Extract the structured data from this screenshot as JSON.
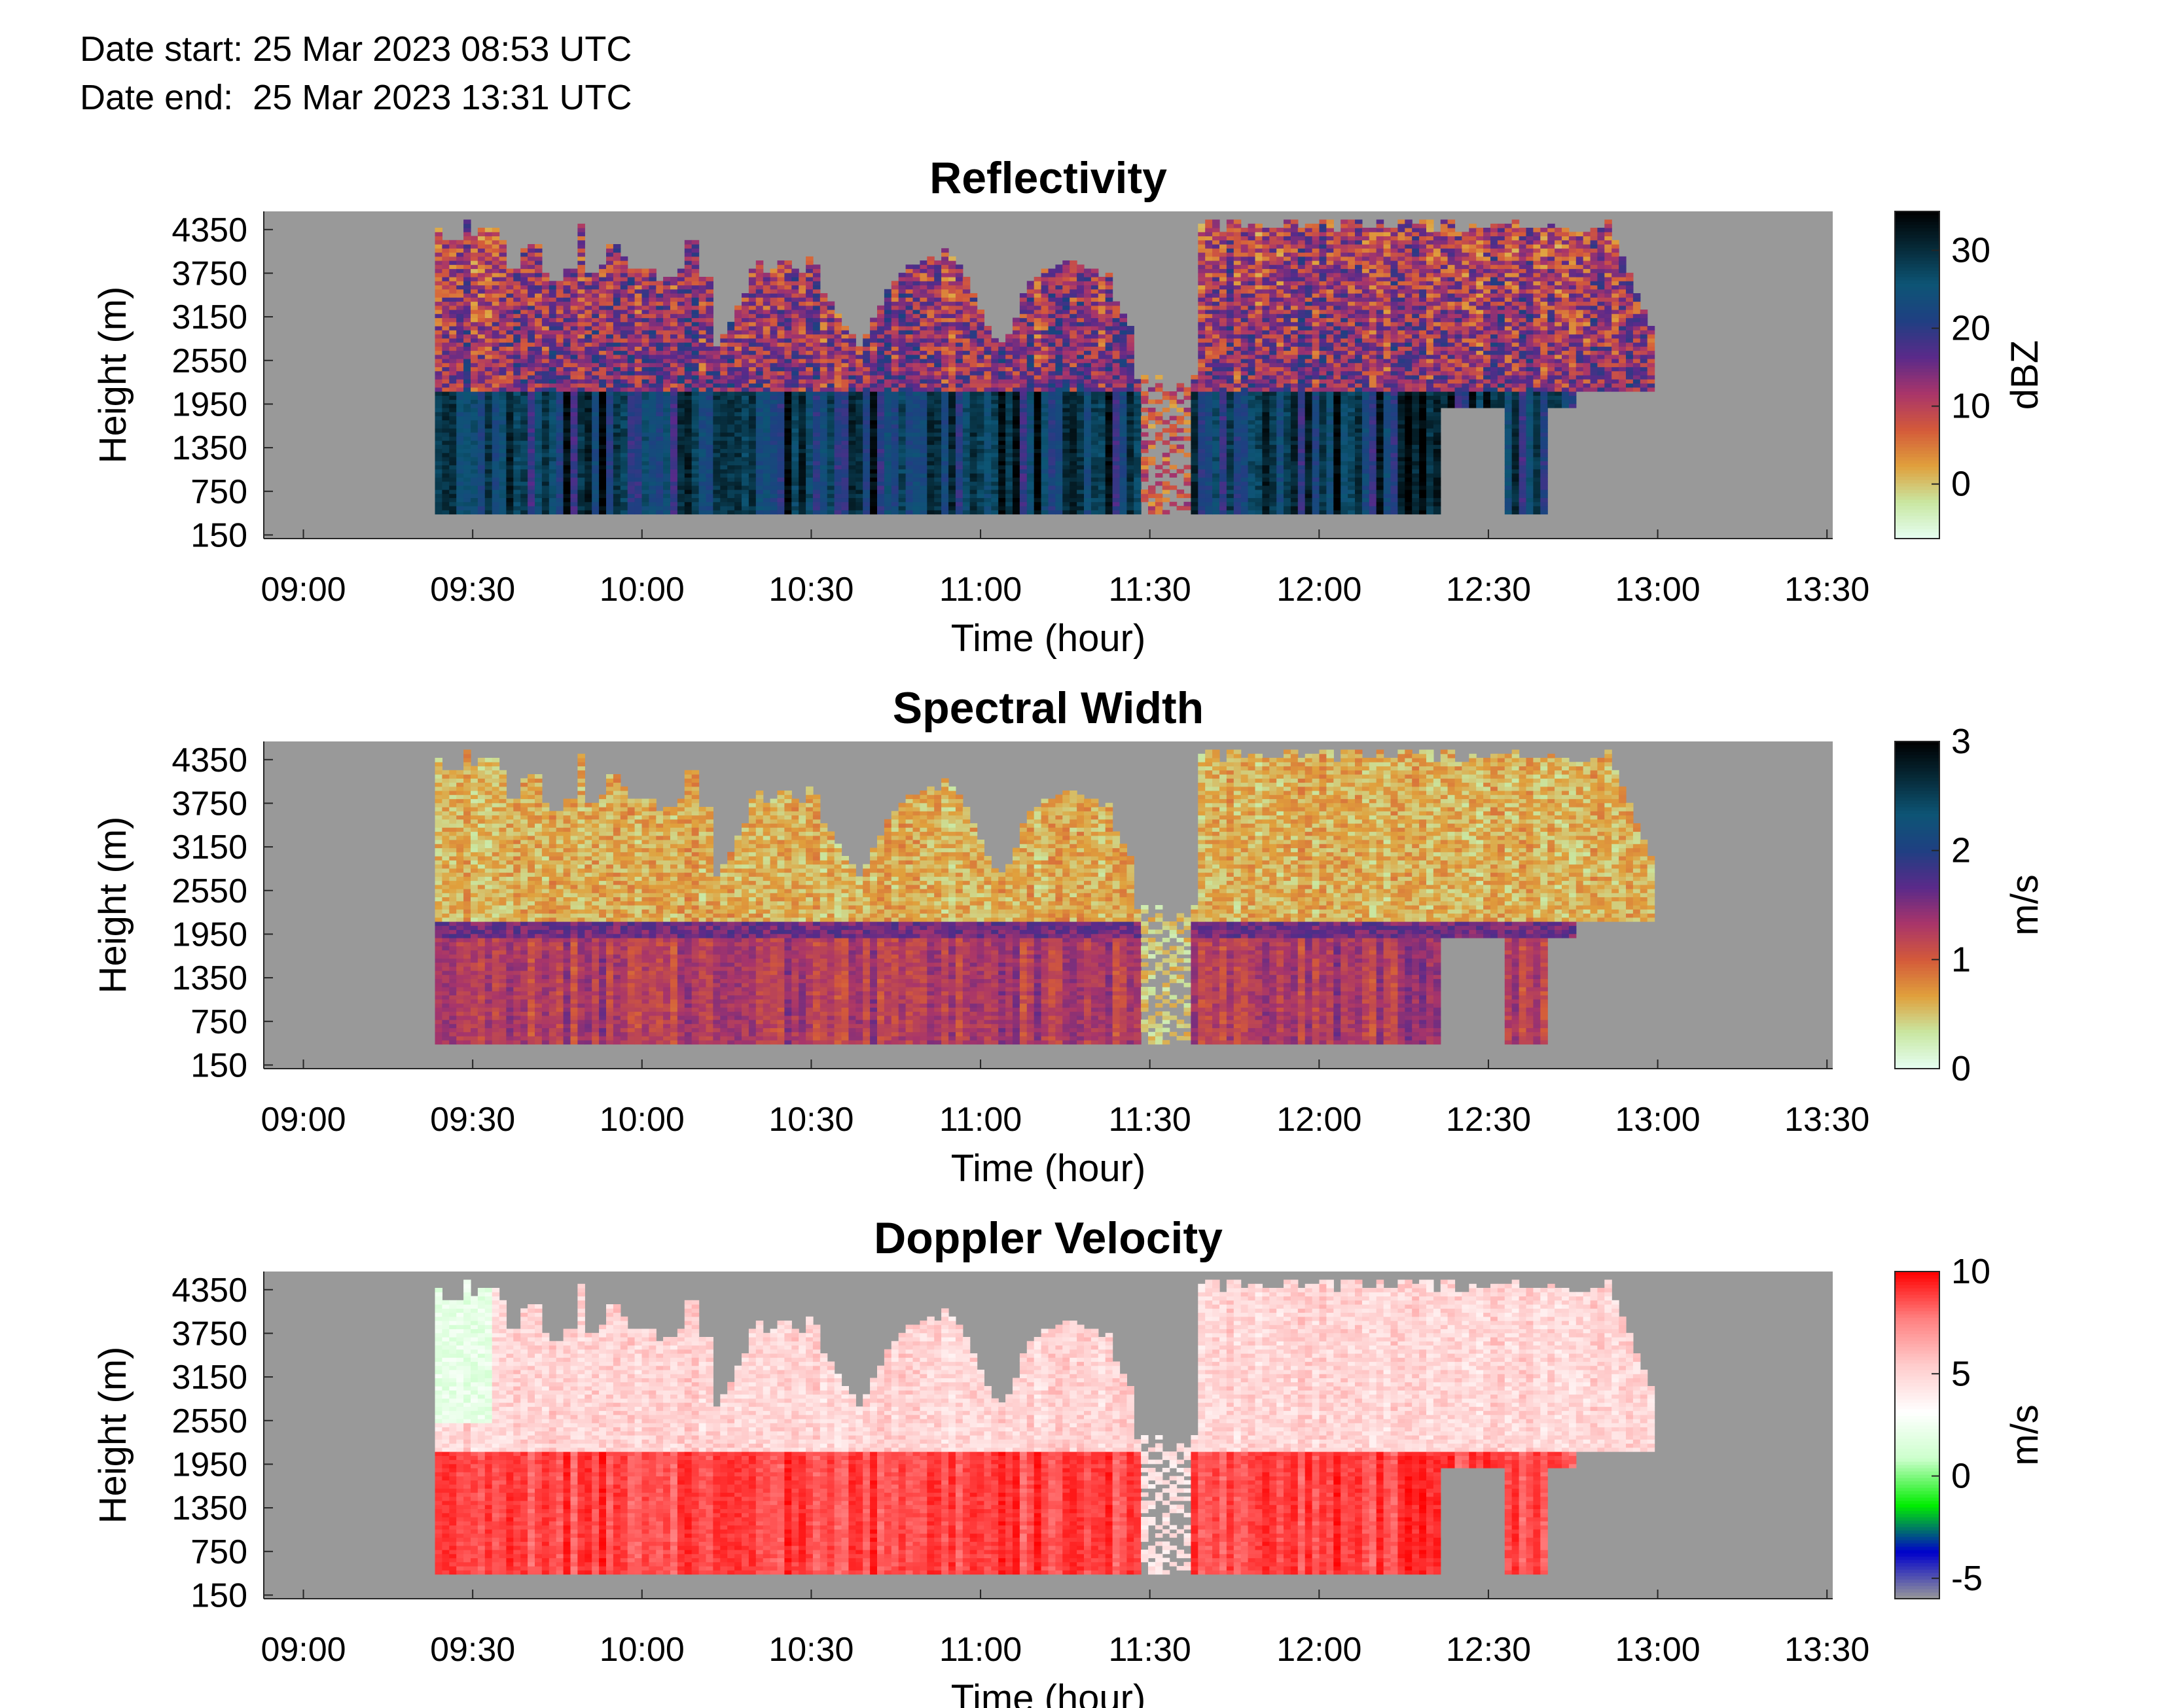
{
  "header": {
    "date_start": "Date start: 25 Mar 2023 08:53 UTC",
    "date_end": "Date end:  25 Mar 2023 13:31 UTC"
  },
  "chart_data": [
    {
      "type": "heatmap",
      "title": "Reflectivity",
      "xlabel": "Time (hour)",
      "ylabel": "Height (m)",
      "x_ticks": [
        "09:00",
        "09:30",
        "10:00",
        "10:30",
        "11:00",
        "11:30",
        "12:00",
        "12:30",
        "13:00",
        "13:30"
      ],
      "y_ticks": [
        "150",
        "750",
        "1350",
        "1950",
        "2550",
        "3150",
        "3750",
        "4350"
      ],
      "colorbar": {
        "label": "dBZ",
        "ticks": [
          "0",
          "10",
          "20",
          "30"
        ],
        "range": [
          -7,
          35
        ],
        "colors": [
          "#e6fff3",
          "#c9e7a2",
          "#e0a03c",
          "#d45a3a",
          "#a8356a",
          "#5a2a8a",
          "#1f3f82",
          "#0d5575",
          "#062a38",
          "#000000"
        ]
      },
      "value_range": [
        -5,
        35
      ],
      "features": {
        "dense_layer_below_m": 2100,
        "cloud_top_m": 4500
      }
    },
    {
      "type": "heatmap",
      "title": "Spectral Width",
      "xlabel": "Time (hour)",
      "ylabel": "Height (m)",
      "x_ticks": [
        "09:00",
        "09:30",
        "10:00",
        "10:30",
        "11:00",
        "11:30",
        "12:00",
        "12:30",
        "13:00",
        "13:30"
      ],
      "y_ticks": [
        "150",
        "750",
        "1350",
        "1950",
        "2550",
        "3150",
        "3750",
        "4350"
      ],
      "colorbar": {
        "label": "m/s",
        "ticks": [
          "0",
          "1",
          "2",
          "3"
        ],
        "range": [
          0,
          3
        ],
        "colors": [
          "#e6fff3",
          "#c9e7a2",
          "#e0a03c",
          "#d45a3a",
          "#a8356a",
          "#5a2a8a",
          "#1f3f82",
          "#0d5575",
          "#062a38",
          "#000000"
        ]
      },
      "value_range": [
        0,
        3
      ]
    },
    {
      "type": "heatmap",
      "title": "Doppler Velocity",
      "xlabel": "Time (hour)",
      "ylabel": "Height (m)",
      "x_ticks": [
        "09:00",
        "09:30",
        "10:00",
        "10:30",
        "11:00",
        "11:30",
        "12:00",
        "12:30",
        "13:00",
        "13:30"
      ],
      "y_ticks": [
        "150",
        "750",
        "1350",
        "1950",
        "2550",
        "3150",
        "3750",
        "4350"
      ],
      "colorbar": {
        "label": "m/s",
        "ticks": [
          "-5",
          "0",
          "5",
          "10"
        ],
        "range": [
          -6,
          10
        ],
        "colors": [
          "#999999",
          "#0000cc",
          "#00ee00",
          "#ccffcc",
          "#ffffff",
          "#ffcccc",
          "#ff8080",
          "#ff0000"
        ]
      },
      "value_range": [
        -5,
        10
      ]
    }
  ],
  "x_range_hours": [
    8.883,
    13.517
  ],
  "y_range_m": [
    100,
    4600
  ]
}
